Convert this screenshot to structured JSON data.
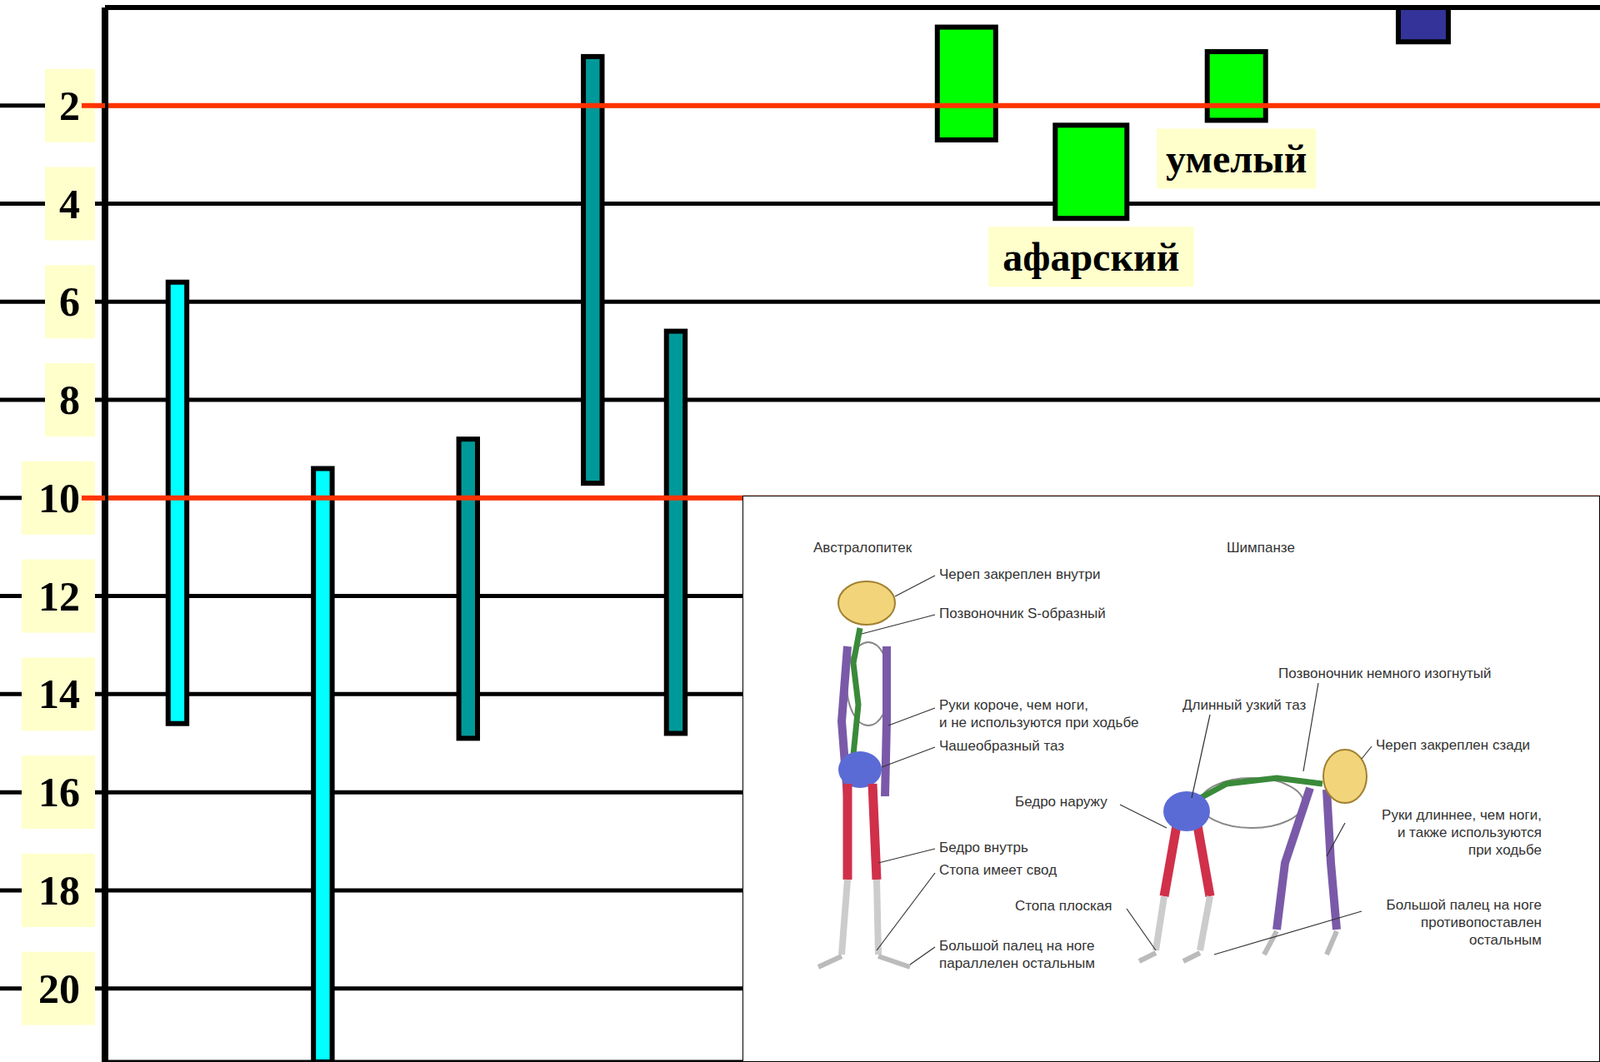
{
  "chart_data": {
    "type": "bar",
    "categories": [
      null,
      null,
      null,
      null,
      null,
      null,
      null,
      null,
      null,
      null,
      null,
      null,
      null,
      null,
      null,
      null,
      null,
      null,
      null,
      null,
      null,
      null,
      null,
      null,
      null,
      null,
      null,
      null,
      null,
      null,
      null,
      null,
      null,
      null,
      null,
      null,
      null,
      null,
      null,
      null,
      null,
      null,
      null,
      null,
      null,
      null,
      null,
      null,
      null,
      null,
      null,
      null,
      null,
      null,
      null,
      null,
      null,
      null,
      null,
      null,
      null,
      null,
      null,
      null,
      null,
      null,
      null,
      null,
      null,
      null,
      null,
      null
    ],
    "values": [
      null,
      null,
      null,
      [
        5.6,
        14.6
      ],
      null,
      null,
      null,
      null,
      null,
      null,
      [
        9.4,
        21.5
      ],
      null,
      null,
      null,
      null,
      null,
      null,
      [
        8.8,
        14.9
      ],
      null,
      null,
      null,
      null,
      null,
      [
        1,
        9.7
      ],
      null,
      null,
      null,
      [
        6.6,
        14.8
      ],
      null,
      null,
      null,
      null,
      null,
      null,
      null,
      null,
      null,
      null,
      null,
      null,
      null,
      [
        0.4,
        2.7
      ],
      null,
      null,
      null,
      null,
      null,
      [
        2.4,
        4.3
      ],
      null,
      null,
      null,
      null,
      null,
      null,
      [
        0.9,
        2.3
      ],
      null,
      null,
      null,
      null,
      null,
      null,
      null,
      null,
      [
        0,
        0.7
      ],
      null,
      null,
      null,
      null,
      null,
      null,
      null,
      null
    ],
    "colors": [
      null,
      null,
      null,
      "#00ffff",
      null,
      null,
      null,
      null,
      null,
      null,
      "#00ffff",
      null,
      null,
      null,
      null,
      null,
      null,
      "#009999",
      null,
      null,
      null,
      null,
      null,
      "#009999",
      null,
      null,
      null,
      "#009999",
      null,
      null,
      null,
      null,
      null,
      null,
      null,
      null,
      null,
      null,
      null,
      null,
      null,
      "#00ff00",
      null,
      null,
      null,
      null,
      null,
      "#00ff00",
      null,
      null,
      null,
      null,
      null,
      null,
      "#00ff00",
      null,
      null,
      null,
      null,
      null,
      null,
      null,
      null,
      "#333399",
      null,
      null,
      null,
      null,
      null,
      null,
      null,
      null
    ],
    "labels": [
      null,
      null,
      null,
      null,
      null,
      null,
      null,
      null,
      null,
      null,
      null,
      null,
      null,
      null,
      null,
      null,
      null,
      null,
      null,
      null,
      null,
      null,
      null,
      null,
      null,
      null,
      null,
      null,
      null,
      null,
      null,
      null,
      null,
      null,
      null,
      null,
      null,
      null,
      null,
      null,
      null,
      null,
      null,
      null,
      null,
      null,
      null,
      "афарский",
      null,
      null,
      null,
      null,
      null,
      null,
      "умелый",
      null,
      null,
      null,
      null,
      null,
      null,
      null,
      null,
      null,
      null,
      null,
      null,
      null,
      null,
      null,
      null,
      null
    ],
    "ylim": [
      21.5,
      0
    ],
    "yticks": [
      2,
      4,
      6,
      8,
      10,
      12,
      14,
      16,
      18,
      20
    ],
    "grid": true,
    "tick_labels": "y",
    "reference_lines": [
      {
        "y": 2,
        "color": "#ff3300"
      },
      {
        "y": 10,
        "color": "#ff3300"
      }
    ]
  },
  "inset": {
    "titles": [
      "Австралопитек",
      "Шимпанзе"
    ],
    "labels": [
      [
        "Череп закреплен внутри"
      ],
      [
        "Позвоночник S-образный"
      ],
      [
        "Руки короче, чем ноги,",
        "и не используются при ходьбе"
      ],
      [
        "Чашеобразный таз"
      ],
      [
        "Бедро внутрь"
      ],
      [
        "Стопа имеет свод"
      ],
      [
        "Большой палец на ноге",
        "параллелен остальным"
      ],
      [
        "Позвоночник немного изогнутый"
      ],
      [
        "Длинный узкий таз"
      ],
      [
        "Череп закреплен сзади"
      ],
      [
        "Бедро наружу"
      ],
      [
        "Руки длиннее, чем ноги,",
        "и также используются",
        "при ходьбе"
      ],
      [
        "Стопа плоская"
      ],
      [
        "Большой палец на ноге",
        "противопоставлен",
        "остальным"
      ]
    ]
  }
}
